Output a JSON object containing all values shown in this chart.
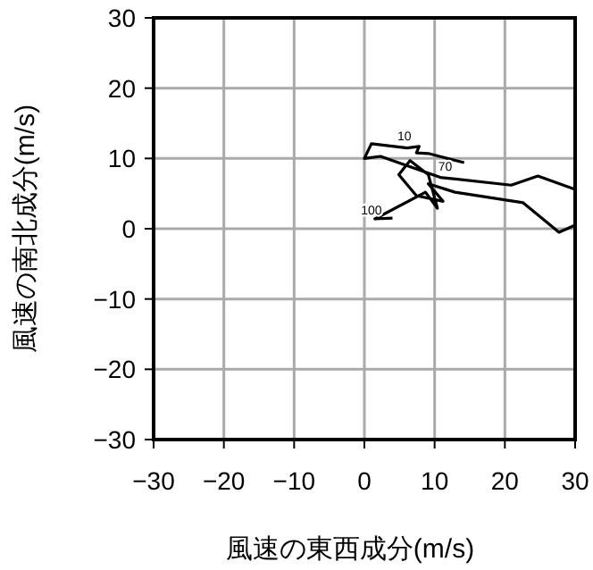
{
  "chart_data": {
    "type": "line",
    "xlabel": "風速の東西成分(m/s)",
    "ylabel": "風速の南北成分(m/s)",
    "x": [
      14.2,
      9.1,
      7.4,
      7.8,
      6.1,
      1.0,
      0.0,
      2.3,
      10.8,
      20.9,
      24.7,
      30.0,
      null,
      30.0,
      27.7,
      22.6,
      12.9,
      9.1,
      11.2,
      7.4,
      4.9,
      6.5,
      9.1,
      10.4,
      8.7,
      1.5,
      4.0
    ],
    "values": [
      9.4,
      10.7,
      10.8,
      11.7,
      11.5,
      12.1,
      10.0,
      10.3,
      7.3,
      6.2,
      7.5,
      5.6,
      null,
      0.5,
      -0.5,
      3.7,
      5.2,
      6.4,
      3.9,
      4.7,
      7.7,
      9.7,
      7.7,
      2.9,
      5.2,
      1.4,
      1.5
    ],
    "color": "#000000",
    "xlim": [
      -30,
      30
    ],
    "ylim": [
      -30,
      30
    ],
    "xticks": [
      -30,
      -20,
      -10,
      0,
      10,
      20,
      30
    ],
    "yticks": [
      -30,
      -20,
      -10,
      0,
      10,
      20,
      30
    ],
    "grid": true,
    "annotations": [
      {
        "text": "10",
        "x": 5.7,
        "y": 13.0
      },
      {
        "text": "70",
        "x": 11.5,
        "y": 8.7
      },
      {
        "text": "100",
        "x": 1.0,
        "y": 2.4
      }
    ]
  }
}
